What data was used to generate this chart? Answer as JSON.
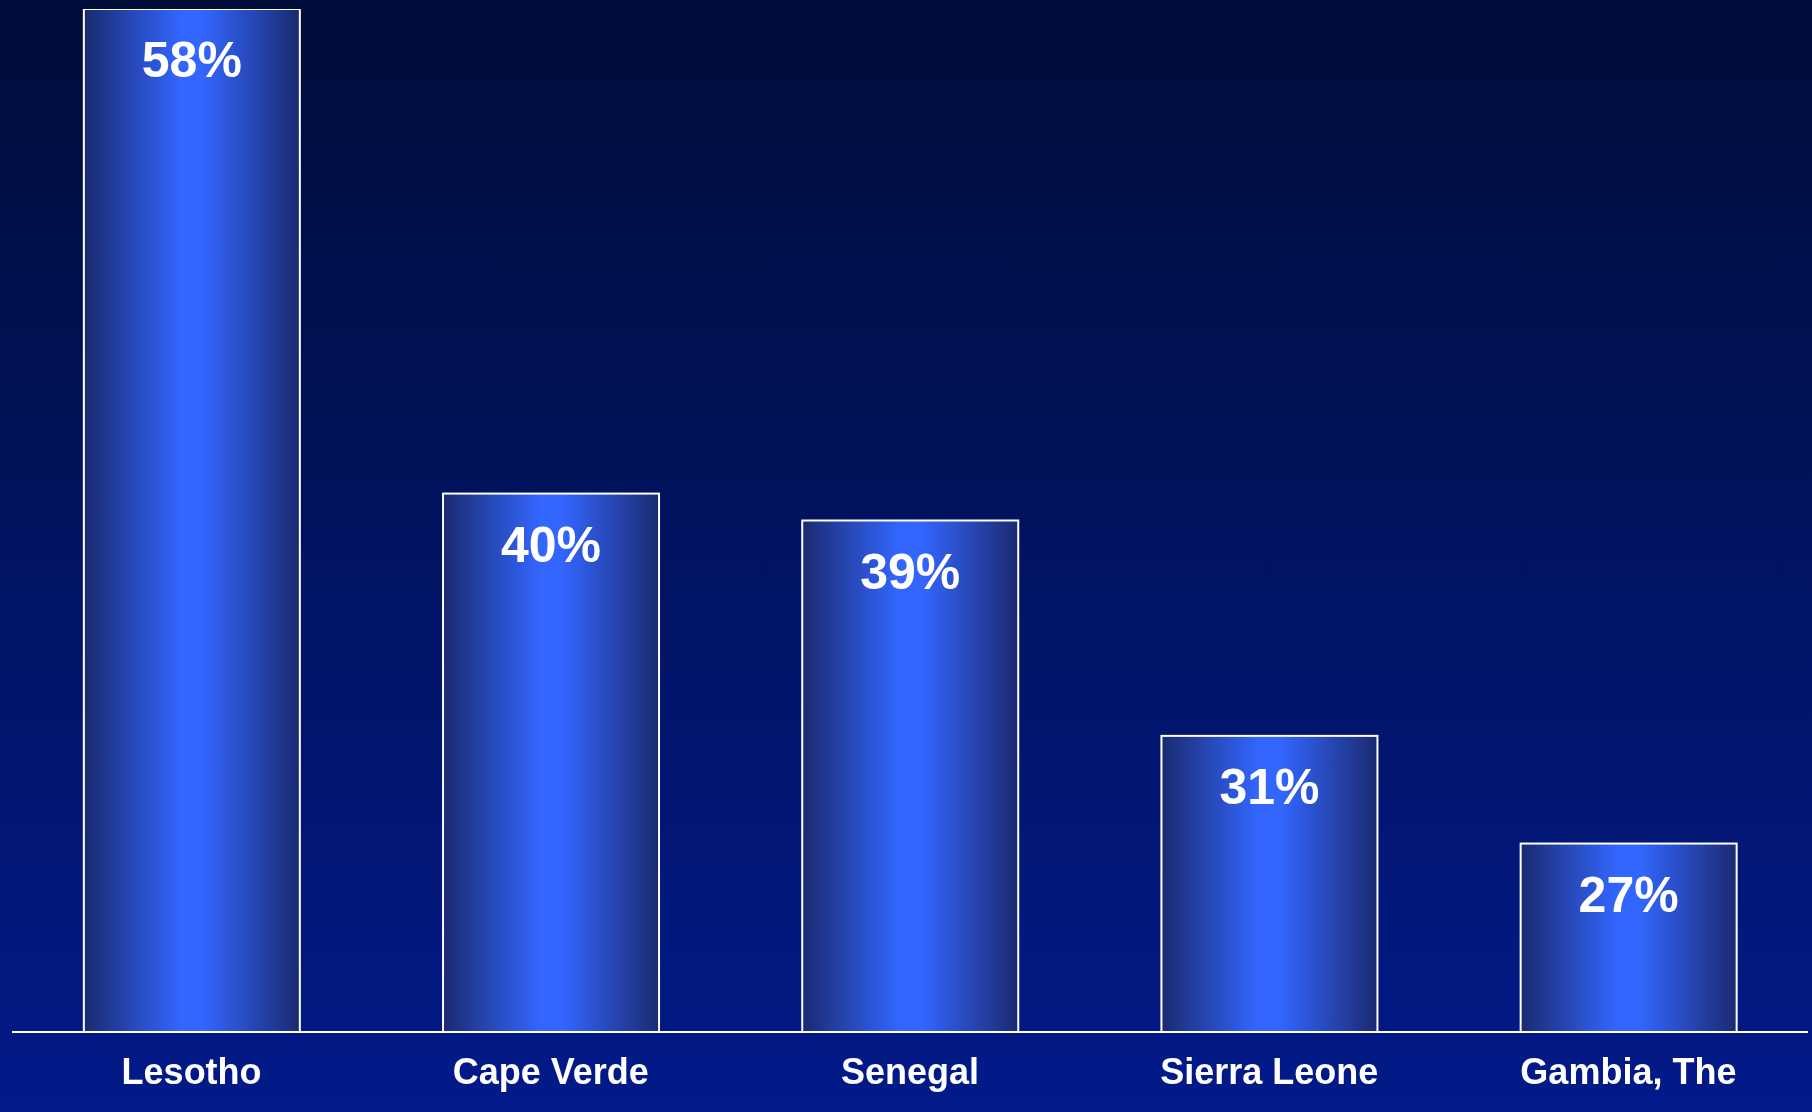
{
  "chart_data": {
    "type": "bar",
    "categories": [
      "Lesotho",
      "Cape Verde",
      "Senegal",
      "Sierra Leone",
      "Gambia, The"
    ],
    "values": [
      58,
      40,
      39,
      31,
      27
    ],
    "color": "#3366ff",
    "ylim": [
      20,
      58
    ],
    "value_labels": [
      "58%",
      "40%",
      "39%",
      "31%",
      "27%"
    ]
  }
}
